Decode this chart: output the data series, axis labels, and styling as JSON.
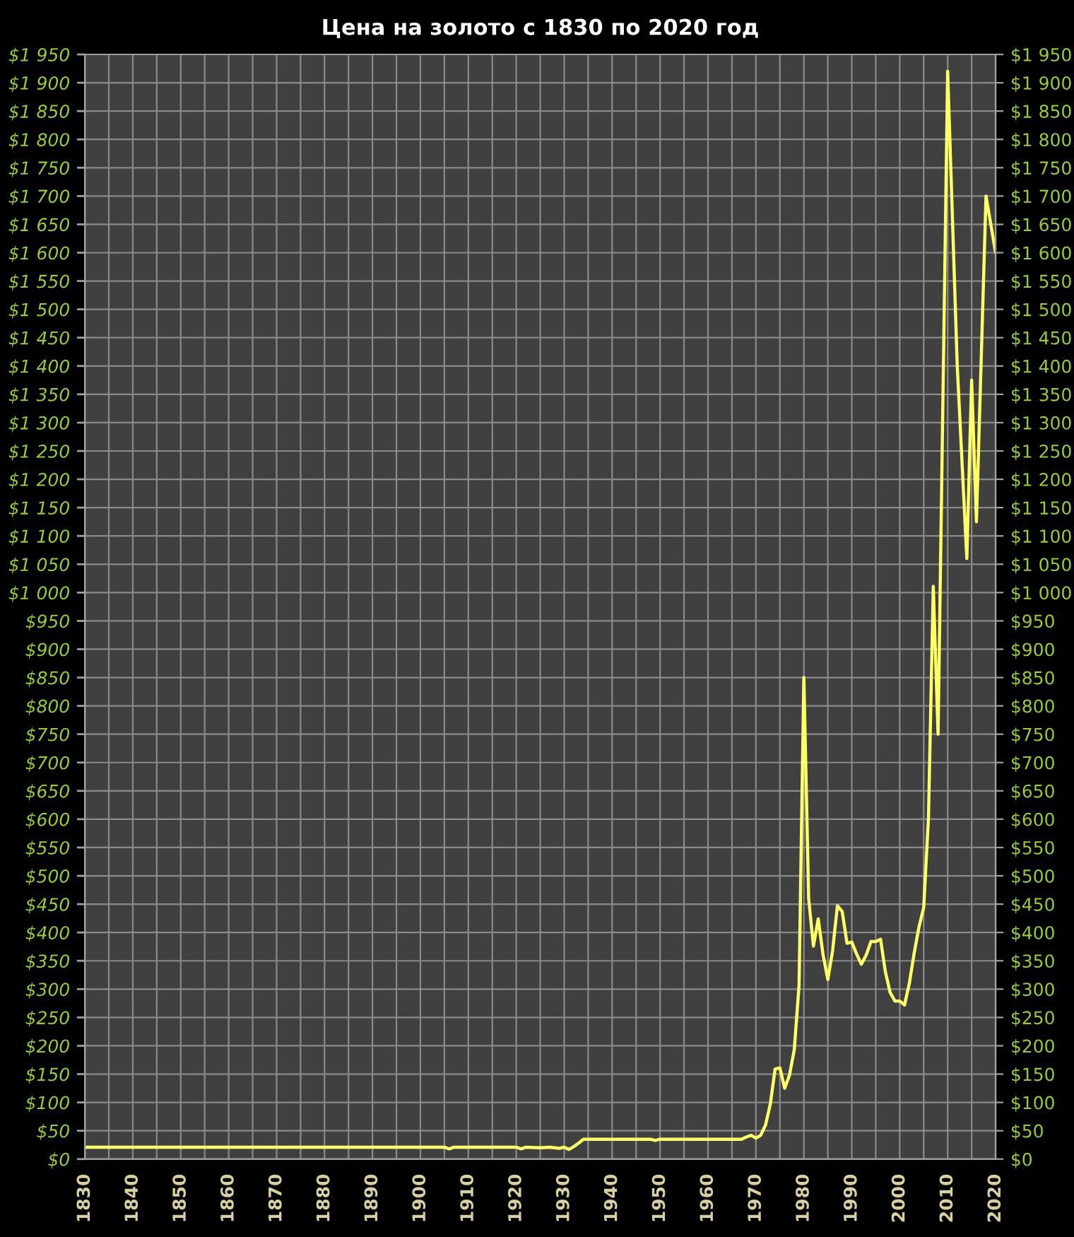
{
  "chart_data": {
    "type": "line",
    "title": "Цена на золото с 1830 по 2020 год",
    "x": [
      1830,
      1905,
      1906,
      1907,
      1920,
      1921,
      1922,
      1925,
      1927,
      1929,
      1930,
      1931,
      1932,
      1933,
      1934,
      1948,
      1949,
      1950,
      1967,
      1968,
      1969,
      1970,
      1971,
      1972,
      1973,
      1974,
      1975,
      1976,
      1977,
      1978,
      1979,
      1980,
      1981,
      1982,
      1983,
      1984,
      1985,
      1986,
      1987,
      1988,
      1989,
      1990,
      1991,
      1992,
      1993,
      1994,
      1995,
      1996,
      1997,
      1998,
      1999,
      2000,
      2001,
      2002,
      2003,
      2004,
      2005,
      2006,
      2007,
      2008,
      2010,
      2012,
      2014,
      2015,
      2016,
      2018,
      2020
    ],
    "series": [
      {
        "color": "#ffff66",
        "values": [
          21,
          21,
          18,
          21,
          21,
          18,
          21,
          20,
          21,
          19,
          21,
          17,
          22,
          28,
          35,
          35,
          33,
          35,
          35,
          39,
          42,
          37,
          42,
          60,
          97,
          159,
          161,
          125,
          148,
          193,
          307,
          850,
          460,
          376,
          424,
          361,
          317,
          368,
          447,
          437,
          381,
          383,
          362,
          344,
          360,
          384,
          384,
          388,
          331,
          294,
          279,
          279,
          272,
          310,
          363,
          409,
          444,
          603,
          1011,
          750,
          1920,
          1400,
          1060,
          1375,
          1125,
          1700,
          1600
        ]
      }
    ],
    "xlim": [
      1830,
      2020
    ],
    "xticks": [
      1830,
      {
        "value": 1835,
        "label": null
      },
      1840,
      {
        "value": 1845,
        "label": null
      },
      1850,
      {
        "value": 1855,
        "label": null
      },
      1860,
      {
        "value": 1865,
        "label": null
      },
      1870,
      {
        "value": 1875,
        "label": null
      },
      1880,
      {
        "value": 1885,
        "label": null
      },
      1890,
      {
        "value": 1895,
        "label": null
      },
      1900,
      {
        "value": 1905,
        "label": null
      },
      1910,
      {
        "value": 1915,
        "label": null
      },
      1920,
      {
        "value": 1925,
        "label": null
      },
      1930,
      {
        "value": 1935,
        "label": null
      },
      1940,
      {
        "value": 1945,
        "label": null
      },
      1950,
      {
        "value": 1955,
        "label": null
      },
      1960,
      {
        "value": 1965,
        "label": null
      },
      1970,
      {
        "value": 1975,
        "label": null
      },
      1980,
      {
        "value": 1985,
        "label": null
      },
      1990,
      {
        "value": 1995,
        "label": null
      },
      2000,
      {
        "value": 2005,
        "label": null
      },
      2010,
      {
        "value": 2015,
        "label": null
      },
      2020
    ],
    "ylim": [
      0,
      1950
    ],
    "yticks": [
      {
        "value": 0,
        "label": "$0"
      },
      {
        "value": 50,
        "label": "$50"
      },
      {
        "value": 100,
        "label": "$100"
      },
      {
        "value": 150,
        "label": "$150"
      },
      {
        "value": 200,
        "label": "$200"
      },
      {
        "value": 250,
        "label": "$250"
      },
      {
        "value": 300,
        "label": "$300"
      },
      {
        "value": 350,
        "label": "$350"
      },
      {
        "value": 400,
        "label": "$400"
      },
      {
        "value": 450,
        "label": "$450"
      },
      {
        "value": 500,
        "label": "$500"
      },
      {
        "value": 550,
        "label": "$550"
      },
      {
        "value": 600,
        "label": "$600"
      },
      {
        "value": 650,
        "label": "$650"
      },
      {
        "value": 700,
        "label": "$700"
      },
      {
        "value": 750,
        "label": "$750"
      },
      {
        "value": 800,
        "label": "$800"
      },
      {
        "value": 850,
        "label": "$850"
      },
      {
        "value": 900,
        "label": "$900"
      },
      {
        "value": 950,
        "label": "$950"
      },
      {
        "value": 1000,
        "label": "$1 000"
      },
      {
        "value": 1050,
        "label": "$1 050"
      },
      {
        "value": 1100,
        "label": "$1 100"
      },
      {
        "value": 1150,
        "label": "$1 150"
      },
      {
        "value": 1200,
        "label": "$1 200"
      },
      {
        "value": 1250,
        "label": "$1 250"
      },
      {
        "value": 1300,
        "label": "$1 300"
      },
      {
        "value": 1350,
        "label": "$1 350"
      },
      {
        "value": 1400,
        "label": "$1 400"
      },
      {
        "value": 1450,
        "label": "$1 450"
      },
      {
        "value": 1500,
        "label": "$1 500"
      },
      {
        "value": 1550,
        "label": "$1 550"
      },
      {
        "value": 1600,
        "label": "$1 600"
      },
      {
        "value": 1650,
        "label": "$1 650"
      },
      {
        "value": 1700,
        "label": "$1 700"
      },
      {
        "value": 1750,
        "label": "$1 750"
      },
      {
        "value": 1800,
        "label": "$1 800"
      },
      {
        "value": 1850,
        "label": "$1 850"
      },
      {
        "value": 1900,
        "label": "$1 900"
      },
      {
        "value": 1950,
        "label": "$1 950"
      }
    ],
    "y2lim": [
      0,
      1950
    ],
    "y2ticks": [
      {
        "value": 0,
        "label": "$0"
      },
      {
        "value": 50,
        "label": "$50"
      },
      {
        "value": 100,
        "label": "$100"
      },
      {
        "value": 150,
        "label": "$150"
      },
      {
        "value": 200,
        "label": "$200"
      },
      {
        "value": 250,
        "label": "$250"
      },
      {
        "value": 300,
        "label": "$300"
      },
      {
        "value": 350,
        "label": "$350"
      },
      {
        "value": 400,
        "label": "$400"
      },
      {
        "value": 450,
        "label": "$450"
      },
      {
        "value": 500,
        "label": "$500"
      },
      {
        "value": 550,
        "label": "$550"
      },
      {
        "value": 600,
        "label": "$600"
      },
      {
        "value": 650,
        "label": "$650"
      },
      {
        "value": 700,
        "label": "$700"
      },
      {
        "value": 750,
        "label": "$750"
      },
      {
        "value": 800,
        "label": "$800"
      },
      {
        "value": 850,
        "label": "$850"
      },
      {
        "value": 900,
        "label": "$900"
      },
      {
        "value": 950,
        "label": "$950"
      },
      {
        "value": 1000,
        "label": "$1 000"
      },
      {
        "value": 1050,
        "label": "$1 050"
      },
      {
        "value": 1100,
        "label": "$1 100"
      },
      {
        "value": 1150,
        "label": "$1 150"
      },
      {
        "value": 1200,
        "label": "$1 200"
      },
      {
        "value": 1250,
        "label": "$1 250"
      },
      {
        "value": 1300,
        "label": "$1 300"
      },
      {
        "value": 1350,
        "label": "$1 350"
      },
      {
        "value": 1400,
        "label": "$1 400"
      },
      {
        "value": 1450,
        "label": "$1 450"
      },
      {
        "value": 1500,
        "label": "$1 500"
      },
      {
        "value": 1550,
        "label": "$1 550"
      },
      {
        "value": 1600,
        "label": "$1 600"
      },
      {
        "value": 1650,
        "label": "$1 650"
      },
      {
        "value": 1700,
        "label": "$1 700"
      },
      {
        "value": 1750,
        "label": "$1 750"
      },
      {
        "value": 1800,
        "label": "$1 800"
      },
      {
        "value": 1850,
        "label": "$1 850"
      },
      {
        "value": 1900,
        "label": "$1 900"
      },
      {
        "value": 1950,
        "label": "$1 950"
      }
    ],
    "grid": true
  }
}
